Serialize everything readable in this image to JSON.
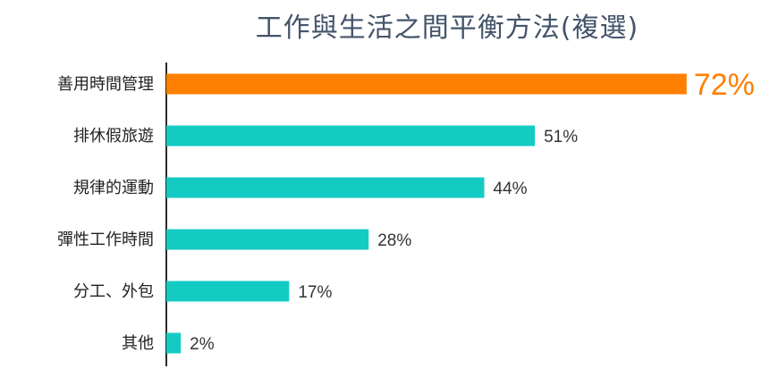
{
  "title": "工作與生活之間平衡方法(複選)",
  "chart_data": {
    "type": "bar",
    "orientation": "horizontal",
    "title": "工作與生活之間平衡方法(複選)",
    "categories": [
      "善用時間管理",
      "排休假旅遊",
      "規律的運動",
      "彈性工作時間",
      "分工、外包",
      "其他"
    ],
    "values": [
      72,
      51,
      44,
      28,
      17,
      2
    ],
    "value_labels": [
      "72%",
      "51%",
      "44%",
      "28%",
      "17%",
      "2%"
    ],
    "unit": "%",
    "xlim": [
      0,
      100
    ],
    "grid": false,
    "legend": "none",
    "xlabel": "",
    "ylabel": ""
  },
  "colors": {
    "highlight": "#ff7f00",
    "bar": "#14cbc4",
    "axis": "#2b2b2b",
    "title": "#44546a"
  },
  "highlight_index": 0
}
